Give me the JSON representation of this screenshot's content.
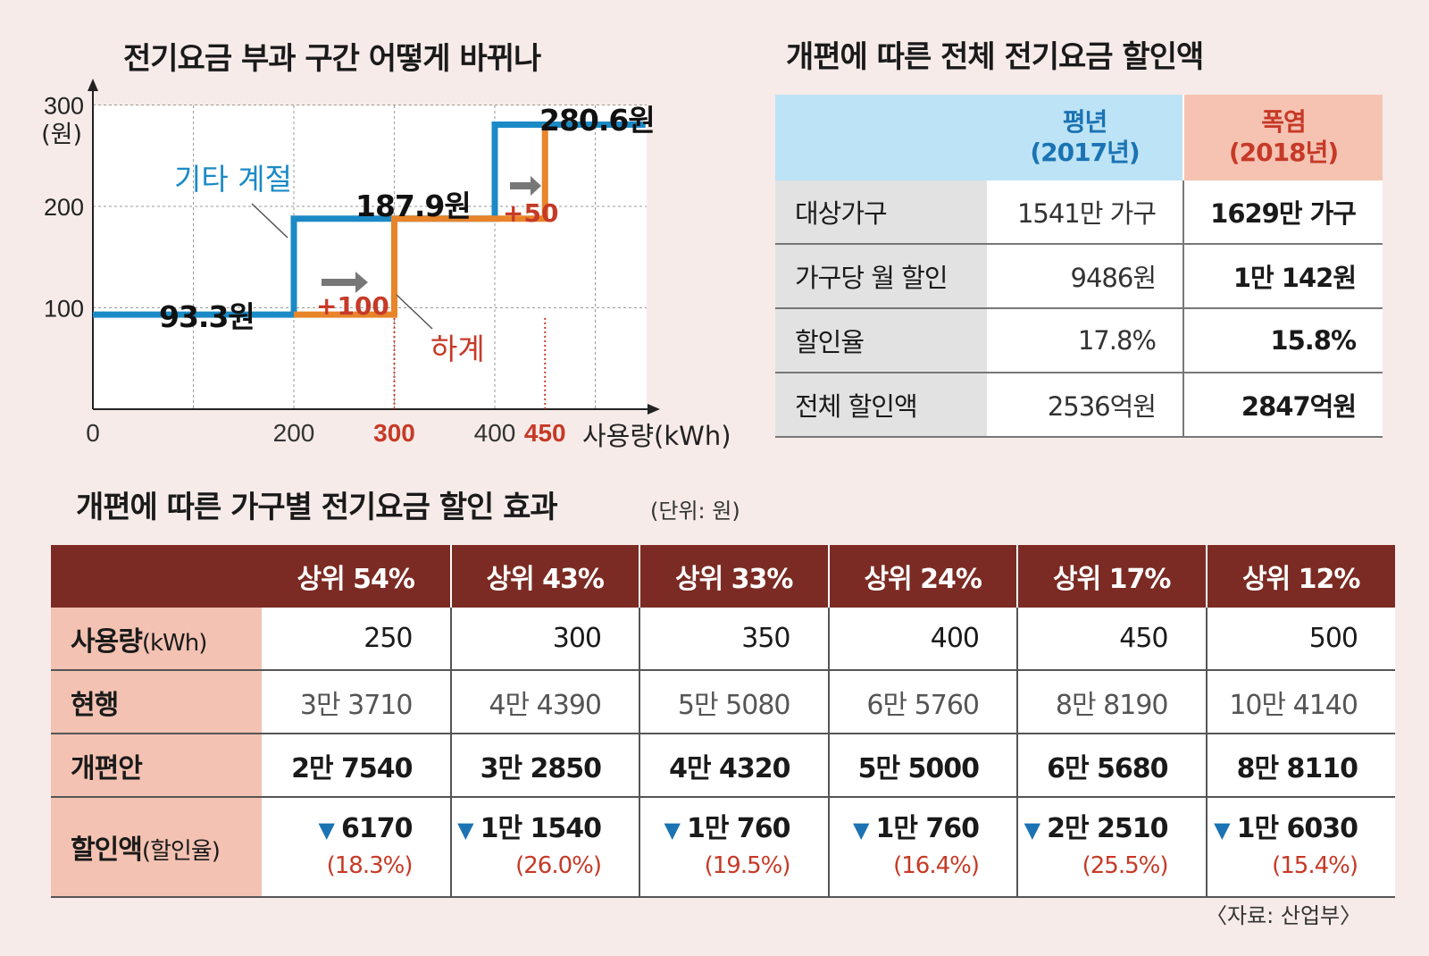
{
  "chart_title": "전기요금 부과 구간 어떻게 바뀌나",
  "chart_data": {
    "type": "line",
    "title": "전기요금 부과 구간 어떻게 바뀌나",
    "xlabel": "사용량(kWh)",
    "ylabel": "(원)",
    "xlim": [
      0,
      550
    ],
    "ylim": [
      0,
      300
    ],
    "x_ticks": [
      "0",
      "200",
      "300",
      "400",
      "450"
    ],
    "x_ticks_highlight": [
      "300",
      "450"
    ],
    "y_ticks": [
      "100",
      "200",
      "300"
    ],
    "series": [
      {
        "name": "기타 계절",
        "color": "#1b8ac6",
        "x": [
          0,
          200,
          200,
          400,
          400,
          550
        ],
        "y": [
          93.3,
          93.3,
          187.9,
          187.9,
          280.6,
          280.6
        ]
      },
      {
        "name": "하계",
        "color": "#e8842a",
        "x": [
          200,
          300,
          300,
          400,
          400,
          450,
          450
        ],
        "y": [
          93.3,
          93.3,
          187.9,
          187.9,
          187.9,
          187.9,
          280.6
        ]
      }
    ],
    "price_labels": [
      "93.3원",
      "187.9원",
      "280.6원"
    ],
    "shift_labels": [
      "+100",
      "+50"
    ],
    "legend_labels": {
      "other": "기타 계절",
      "summer": "하계"
    }
  },
  "summary": {
    "title": "개편에 따른 전체 전기요금 할인액",
    "col1_name": "평년",
    "col1_year": "(2017년)",
    "col2_name": "폭염",
    "col2_year": "(2018년)",
    "rows": [
      {
        "label": "대상가구",
        "v1": "1541만 가구",
        "v2": "1629만 가구"
      },
      {
        "label": "가구당 월 할인",
        "v1": "9486원",
        "v2": "1만 142원"
      },
      {
        "label": "할인율",
        "v1": "17.8%",
        "v2": "15.8%"
      },
      {
        "label": "전체 할인액",
        "v1": "2536억원",
        "v2": "2847억원"
      }
    ]
  },
  "effects": {
    "title": "개편에 따른 가구별 전기요금 할인 효과",
    "unit": "(단위: 원)",
    "columns": [
      "상위 54%",
      "상위 43%",
      "상위 33%",
      "상위 24%",
      "상위 17%",
      "상위 12%"
    ],
    "usage_label": "사용량",
    "usage_unit": "(kWh)",
    "usage": [
      "250",
      "300",
      "350",
      "400",
      "450",
      "500"
    ],
    "current_label": "현행",
    "current": [
      "3만 3710",
      "4만 4390",
      "5만 5080",
      "6만 5760",
      "8만 8190",
      "10만 4140"
    ],
    "new_label": "개편안",
    "new": [
      "2만 7540",
      "3만 2850",
      "4만 4320",
      "5만 5000",
      "6만 5680",
      "8만 8110"
    ],
    "discount_label": "할인액",
    "discount_unit": "(할인율)",
    "discount": [
      "6170",
      "1만 1540",
      "1만 760",
      "1만 760",
      "2만 2510",
      "1만 6030"
    ],
    "rate": [
      "(18.3%)",
      "(26.0%)",
      "(19.5%)",
      "(16.4%)",
      "(25.5%)",
      "(15.4%)"
    ]
  },
  "source": "〈자료: 산업부〉"
}
